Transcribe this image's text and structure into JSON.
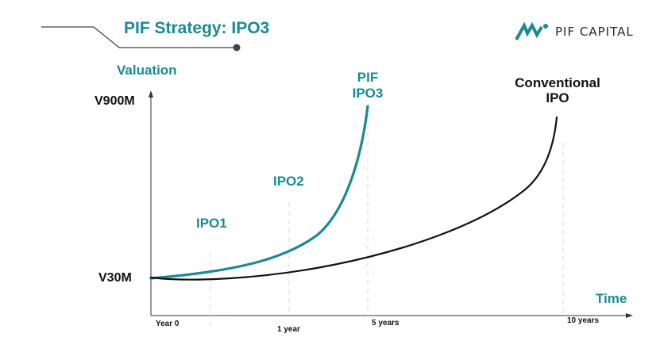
{
  "header": {
    "title": "PIF Strategy: IPO3",
    "logo_text": "PIF CAPITAL"
  },
  "colors": {
    "accent": "#1a8a92",
    "conventional": "#111111",
    "guide": "#c9e2e6"
  },
  "chart_data": {
    "type": "line",
    "title": "PIF Strategy: IPO3",
    "ylabel": "Valuation",
    "xlabel": "Time",
    "y_ticks": [
      "V900M",
      "V30M"
    ],
    "x_ticks": [
      "Year 0",
      "1 year",
      "5 years",
      "10 years"
    ],
    "series": [
      {
        "name_lines": [
          "PIF",
          "IPO3"
        ],
        "color": "#1a8a92"
      },
      {
        "name_lines": [
          "Conventional",
          "IPO"
        ],
        "color": "#111111"
      }
    ],
    "annotations": [
      "IPO1",
      "IPO2"
    ]
  }
}
